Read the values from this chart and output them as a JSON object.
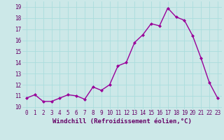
{
  "x": [
    0,
    1,
    2,
    3,
    4,
    5,
    6,
    7,
    8,
    9,
    10,
    11,
    12,
    13,
    14,
    15,
    16,
    17,
    18,
    19,
    20,
    21,
    22,
    23
  ],
  "y": [
    10.8,
    11.1,
    10.5,
    10.5,
    10.8,
    11.1,
    11.0,
    10.7,
    11.8,
    11.5,
    12.0,
    13.7,
    14.0,
    15.8,
    16.5,
    17.5,
    17.3,
    18.9,
    18.1,
    17.8,
    16.4,
    14.4,
    12.2,
    10.8
  ],
  "line_color": "#990099",
  "marker": "D",
  "marker_size": 2.0,
  "line_width": 1.0,
  "bg_color": "#cce8e8",
  "grid_color": "#aadddd",
  "xlabel": "Windchill (Refroidissement éolien,°C)",
  "xlim": [
    -0.5,
    23.5
  ],
  "ylim": [
    9.8,
    19.5
  ],
  "yticks": [
    10,
    11,
    12,
    13,
    14,
    15,
    16,
    17,
    18,
    19
  ],
  "xticks": [
    0,
    1,
    2,
    3,
    4,
    5,
    6,
    7,
    8,
    9,
    10,
    11,
    12,
    13,
    14,
    15,
    16,
    17,
    18,
    19,
    20,
    21,
    22,
    23
  ],
  "tick_color": "#660066",
  "label_color": "#660066",
  "tick_fontsize": 5.5,
  "xlabel_fontsize": 6.5
}
